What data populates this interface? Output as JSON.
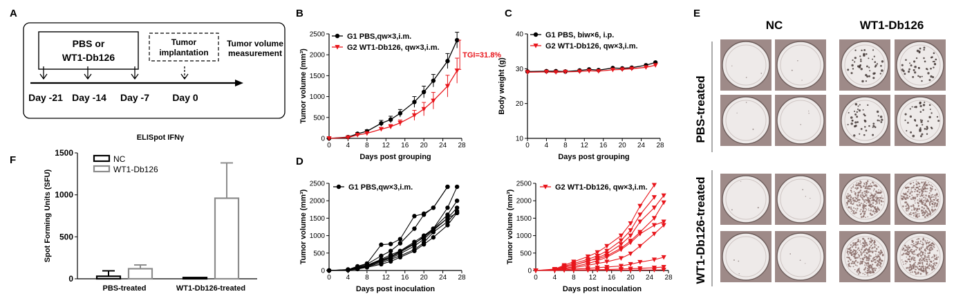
{
  "panel_labels": {
    "A": "A",
    "B": "B",
    "C": "C",
    "D": "D",
    "E": "E",
    "F": "F"
  },
  "schematic": {
    "treatment_box": [
      "PBS or",
      "WT1-Db126"
    ],
    "implant_box": [
      "Tumor",
      "implantation"
    ],
    "measure_text": [
      "Tumor volume",
      "measurement"
    ],
    "days": [
      "Day -21",
      "Day -14",
      "Day -7",
      "Day 0"
    ]
  },
  "colors": {
    "black": "#000000",
    "red": "#e8151b",
    "gray": "#8c8c8c",
    "plate_bg": "#9e8a88"
  },
  "panel_e": {
    "col_labels": [
      "NC",
      "WT1-Db126"
    ],
    "row_labels": [
      "PBS-treated",
      "WT1-Db126-treated"
    ]
  },
  "chart_data": [
    {
      "id": "B",
      "type": "line",
      "title": "",
      "xlabel": "Days post grouping",
      "ylabel": "Tumor volume (mm³)",
      "xlim": [
        0,
        28
      ],
      "ylim": [
        0,
        2500
      ],
      "xticks": [
        "0",
        "4",
        "8",
        "12",
        "16",
        "20",
        "24",
        "28"
      ],
      "yticks": [
        "0",
        "500",
        "1000",
        "1500",
        "2000",
        "2500"
      ],
      "annotation": "TGI=31.8%",
      "series": [
        {
          "name": "G1 PBS,qw×3,i.m.",
          "color": "#000000",
          "x": [
            0,
            4,
            6,
            8,
            11,
            13,
            15,
            18,
            20,
            22,
            25,
            27
          ],
          "y": [
            0,
            30,
            110,
            170,
            360,
            450,
            600,
            870,
            1110,
            1380,
            1850,
            2350
          ],
          "err": [
            0,
            15,
            25,
            35,
            70,
            80,
            90,
            130,
            140,
            150,
            180,
            190
          ]
        },
        {
          "name": "G2 WT1-Db126, qw×3,i.m.",
          "color": "#e8151b",
          "x": [
            0,
            4,
            6,
            8,
            11,
            13,
            15,
            18,
            20,
            22,
            25,
            27
          ],
          "y": [
            0,
            20,
            80,
            120,
            220,
            280,
            370,
            550,
            700,
            900,
            1250,
            1620
          ],
          "err": [
            0,
            10,
            20,
            30,
            40,
            50,
            70,
            120,
            160,
            200,
            260,
            300
          ]
        }
      ]
    },
    {
      "id": "C",
      "type": "line",
      "title": "",
      "xlabel": "Days post grouping",
      "ylabel": "Body weight (g)",
      "xlim": [
        0,
        28
      ],
      "ylim": [
        10,
        40
      ],
      "xticks": [
        "0",
        "4",
        "8",
        "12",
        "16",
        "20",
        "24",
        "28"
      ],
      "yticks": [
        "10",
        "20",
        "30",
        "40"
      ],
      "series": [
        {
          "name": "G1 PBS, biw×6, i.p.",
          "color": "#000000",
          "x": [
            0,
            4,
            6,
            8,
            11,
            13,
            15,
            18,
            20,
            22,
            25,
            27
          ],
          "y": [
            29.2,
            29.3,
            29.3,
            29.2,
            29.5,
            29.8,
            29.6,
            30.2,
            30.1,
            30.3,
            31.0,
            31.8
          ]
        },
        {
          "name": "G2 WT1-Db126, qw×3,i.m.",
          "color": "#e8151b",
          "x": [
            0,
            4,
            6,
            8,
            11,
            13,
            15,
            18,
            20,
            22,
            25,
            27
          ],
          "y": [
            29.0,
            29.1,
            29.0,
            29.1,
            29.2,
            29.4,
            29.3,
            29.7,
            29.8,
            30.0,
            30.4,
            31.0
          ]
        }
      ]
    },
    {
      "id": "D1",
      "type": "line",
      "title": "",
      "xlabel": "Days post inoculation",
      "ylabel": "Tumor volume (mm³)",
      "xlim": [
        0,
        28
      ],
      "ylim": [
        0,
        2500
      ],
      "xticks": [
        "0",
        "4",
        "8",
        "12",
        "16",
        "20",
        "24",
        "28"
      ],
      "yticks": [
        "0",
        "500",
        "1000",
        "1500",
        "2000",
        "2500"
      ],
      "legend": "G1 PBS,qw×3,i.m.",
      "color": "#000000",
      "x": [
        0,
        4,
        6,
        8,
        11,
        13,
        15,
        18,
        20,
        22,
        25,
        27
      ],
      "individuals": [
        [
          0,
          30,
          100,
          180,
          420,
          560,
          780,
          1200,
          1600,
          1800,
          2400,
          null
        ],
        [
          0,
          25,
          120,
          200,
          740,
          760,
          900,
          1560,
          1630,
          1800,
          2400,
          null
        ],
        [
          0,
          20,
          80,
          150,
          320,
          450,
          560,
          820,
          1000,
          1200,
          1800,
          2400
        ],
        [
          0,
          15,
          70,
          140,
          280,
          380,
          520,
          760,
          980,
          1200,
          1600,
          2000
        ],
        [
          0,
          20,
          60,
          120,
          260,
          350,
          480,
          700,
          900,
          1150,
          1500,
          1800
        ],
        [
          0,
          10,
          50,
          110,
          220,
          320,
          420,
          600,
          800,
          1100,
          1400,
          1700
        ],
        [
          0,
          15,
          60,
          130,
          300,
          400,
          550,
          780,
          950,
          1180,
          1500,
          1650
        ],
        [
          0,
          12,
          40,
          90,
          180,
          260,
          380,
          560,
          750,
          950,
          1300,
          1650
        ]
      ]
    },
    {
      "id": "D2",
      "type": "line",
      "title": "",
      "xlabel": "Days post inoculation",
      "ylabel": "Tumor volume (mm³)",
      "xlim": [
        0,
        28
      ],
      "ylim": [
        0,
        2500
      ],
      "xticks": [
        "0",
        "4",
        "8",
        "12",
        "16",
        "20",
        "24",
        "28"
      ],
      "yticks": [
        "0",
        "500",
        "1000",
        "1500",
        "2000",
        "2500"
      ],
      "legend": "G2 WT1-Db126, qw×3,i.m.",
      "color": "#e8151b",
      "x": [
        0,
        4,
        6,
        8,
        11,
        13,
        15,
        18,
        20,
        22,
        25,
        27
      ],
      "individuals": [
        [
          0,
          40,
          150,
          250,
          400,
          520,
          700,
          1000,
          1350,
          1850,
          2450,
          null
        ],
        [
          0,
          30,
          120,
          200,
          320,
          420,
          560,
          860,
          1150,
          1600,
          2100,
          null
        ],
        [
          0,
          20,
          90,
          160,
          260,
          360,
          480,
          750,
          1000,
          1400,
          1800,
          2150
        ],
        [
          0,
          25,
          100,
          150,
          280,
          330,
          420,
          640,
          850,
          1100,
          1500,
          1950
        ],
        [
          0,
          15,
          60,
          110,
          200,
          280,
          380,
          600,
          800,
          1050,
          1300,
          1400
        ],
        [
          0,
          10,
          40,
          80,
          150,
          200,
          250,
          350,
          480,
          700,
          1050,
          1300
        ],
        [
          0,
          5,
          20,
          40,
          60,
          80,
          100,
          130,
          180,
          240,
          310,
          380
        ],
        [
          0,
          5,
          10,
          15,
          20,
          25,
          30,
          40,
          50,
          60,
          80,
          100
        ],
        [
          0,
          0,
          5,
          5,
          5,
          10,
          10,
          10,
          10,
          15,
          15,
          20
        ]
      ]
    },
    {
      "id": "F",
      "type": "bar",
      "title": "ELISpot IFNγ",
      "xlabel": "",
      "ylabel": "Spot Forming Units (SFU)",
      "ylim": [
        0,
        1500
      ],
      "yticks": [
        "0",
        "500",
        "1000",
        "1500"
      ],
      "categories": [
        "PBS-treated",
        "WT1-Db126-treated"
      ],
      "series": [
        {
          "name": "NC",
          "color": "#000000",
          "values": [
            30,
            15
          ],
          "err": [
            65,
            0
          ]
        },
        {
          "name": "WT1-Db126",
          "color": "#8c8c8c",
          "values": [
            120,
            960
          ],
          "err": [
            45,
            420
          ]
        }
      ]
    }
  ]
}
